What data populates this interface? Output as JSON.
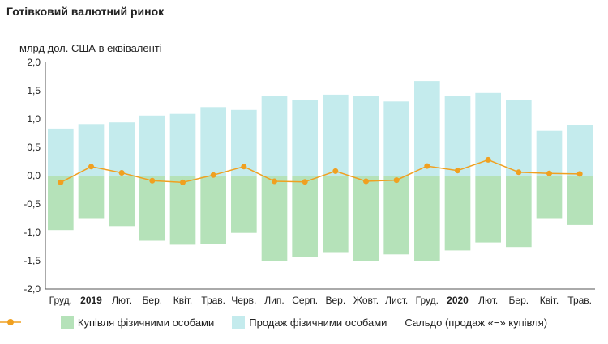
{
  "title": "Готівковий валютний ринок",
  "chart_data": {
    "type": "bar",
    "title": "Готівковий валютний ринок",
    "ylabel": "млрд дол. США в еквіваленті",
    "ylim": [
      -2.0,
      2.0
    ],
    "yticks": [
      "2,0",
      "1,5",
      "1,0",
      "0,5",
      "0,0",
      "-0,5",
      "-1,0",
      "-1,5",
      "-2,0"
    ],
    "ytick_values": [
      2.0,
      1.5,
      1.0,
      0.5,
      0.0,
      -0.5,
      -1.0,
      -1.5,
      -2.0
    ],
    "categories": [
      "Груд.",
      "2019",
      "Лют.",
      "Бер.",
      "Квіт.",
      "Трав.",
      "Черв.",
      "Лип.",
      "Серп.",
      "Вер.",
      "Жовт.",
      "Лист.",
      "Груд.",
      "2020",
      "Лют.",
      "Бер.",
      "Квіт.",
      "Трав."
    ],
    "bold_categories": [
      "2019",
      "2020"
    ],
    "series": [
      {
        "name": "Купівля фізичними особами",
        "kind": "bar",
        "color": "#b5e2b9",
        "values": [
          -0.96,
          -0.75,
          -0.89,
          -1.15,
          -1.22,
          -1.2,
          -1.01,
          -1.5,
          -1.44,
          -1.35,
          -1.5,
          -1.39,
          -1.5,
          -1.32,
          -1.18,
          -1.26,
          -0.75,
          -0.87
        ]
      },
      {
        "name": "Продаж фізичними особами",
        "kind": "bar",
        "color": "#c4ebed",
        "values": [
          0.83,
          0.91,
          0.94,
          1.06,
          1.09,
          1.21,
          1.16,
          1.4,
          1.33,
          1.43,
          1.41,
          1.31,
          1.67,
          1.41,
          1.46,
          1.33,
          0.79,
          0.9
        ]
      },
      {
        "name": "Сальдо (продаж «−» купівля)",
        "kind": "line",
        "color": "#f0a020",
        "values": [
          -0.12,
          0.16,
          0.05,
          -0.09,
          -0.12,
          0.01,
          0.16,
          -0.1,
          -0.11,
          0.08,
          -0.1,
          -0.08,
          0.17,
          0.09,
          0.28,
          0.06,
          0.04,
          0.03
        ]
      }
    ]
  }
}
